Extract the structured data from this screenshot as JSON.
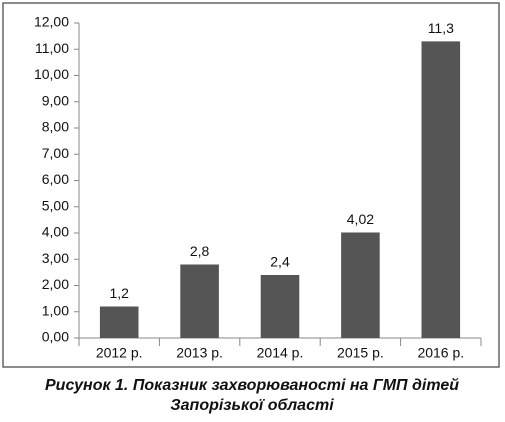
{
  "chart_data": {
    "type": "bar",
    "caption": [
      "Рисунок 1. Показник захворюваності на ГМП дітей",
      "Запорізької області"
    ],
    "categories": [
      "2012 р.",
      "2013 р.",
      "2014 р.",
      "2015 р.",
      "2016 р."
    ],
    "values": [
      1.2,
      2.8,
      2.4,
      4.02,
      11.3
    ],
    "value_labels": [
      "1,2",
      "2,8",
      "2,4",
      "4,02",
      "11,3"
    ],
    "color": "#555555",
    "ylim": [
      0,
      12
    ],
    "yticks": [
      {
        "value": 0,
        "label": "0,00"
      },
      {
        "value": 1,
        "label": "1,00"
      },
      {
        "value": 2,
        "label": "2,00"
      },
      {
        "value": 3,
        "label": "3,00"
      },
      {
        "value": 4,
        "label": "4,00"
      },
      {
        "value": 5,
        "label": "5,00"
      },
      {
        "value": 6,
        "label": "6,00"
      },
      {
        "value": 7,
        "label": "7,00"
      },
      {
        "value": 8,
        "label": "8,00"
      },
      {
        "value": 9,
        "label": "9,00"
      },
      {
        "value": 10,
        "label": "10,00"
      },
      {
        "value": 11,
        "label": "11,00"
      },
      {
        "value": 12,
        "label": "12,00"
      }
    ],
    "grid": false
  }
}
